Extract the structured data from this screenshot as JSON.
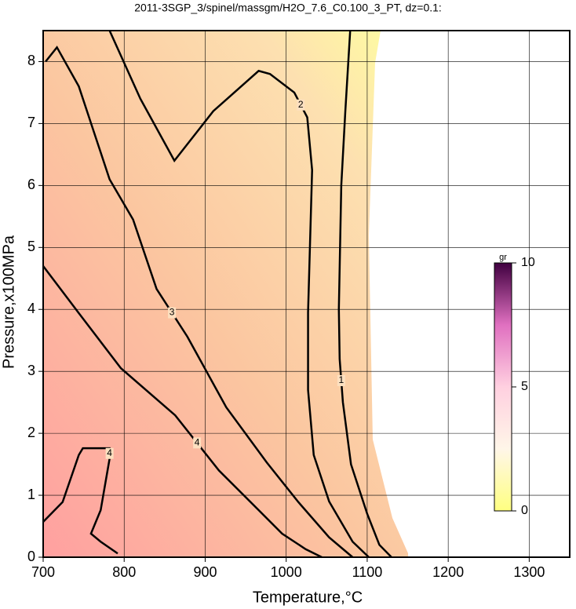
{
  "chart_data": {
    "type": "contour",
    "title": "2011-3SGP_3/spinel/massgm/H2O_7.6_C0.100_3_PT, dz=0.1:",
    "x_label": "Temperature,°C",
    "y_label": "Pressure,x100MPa",
    "xlim": [
      700,
      1350
    ],
    "xticks": [
      700,
      800,
      900,
      1000,
      1100,
      1200,
      1300
    ],
    "ylim": [
      0,
      8.5
    ],
    "yticks": [
      0,
      1,
      2,
      3,
      4,
      5,
      6,
      7,
      8
    ],
    "grid": true,
    "colorbar": {
      "label": "gr",
      "zlim": [
        0,
        10
      ],
      "zticks": [
        0,
        5,
        10
      ],
      "colors": [
        "#ffff80",
        "#fff6e8",
        "#ffd0e0",
        "#e070c0",
        "#400040"
      ]
    },
    "contours": [
      {
        "level": 1,
        "x": [
          1079,
          1073,
          1068,
          1065,
          1066,
          1070,
          1080,
          1100,
          1115,
          1130
        ],
        "y": [
          8.5,
          7.2,
          6.0,
          4.0,
          3.2,
          2.5,
          1.5,
          0.7,
          0.2,
          0
        ]
      },
      {
        "level": 2,
        "x": [
          782,
          820,
          862,
          910,
          966,
          980,
          1010,
          1026,
          1032,
          1027,
          1027,
          1034,
          1053,
          1082,
          1102
        ],
        "y": [
          8.5,
          7.4,
          6.4,
          7.2,
          7.85,
          7.8,
          7.5,
          7.1,
          6.25,
          3.95,
          2.7,
          1.65,
          0.9,
          0.25,
          0
        ]
      },
      {
        "level": 3,
        "x": [
          703,
          717,
          744,
          782,
          811,
          840,
          878,
          926,
          976,
          1015,
          1053,
          1082
        ],
        "y": [
          8.0,
          8.23,
          7.6,
          6.1,
          5.45,
          4.33,
          3.56,
          2.42,
          1.53,
          0.89,
          0.32,
          0
        ]
      },
      {
        "level": 4,
        "x": [
          700,
          744,
          796,
          863,
          917,
          966,
          995,
          1024,
          1044
        ],
        "y": [
          4.7,
          3.94,
          3.05,
          2.29,
          1.4,
          0.76,
          0.38,
          0.13,
          0
        ]
      },
      {
        "level": 4,
        "x": [
          700,
          724,
          744,
          749,
          782,
          782,
          771,
          759,
          771,
          792
        ],
        "y": [
          0.57,
          0.89,
          1.65,
          1.76,
          1.76,
          1.59,
          0.76,
          0.38,
          0.25,
          0.06
        ]
      }
    ]
  }
}
